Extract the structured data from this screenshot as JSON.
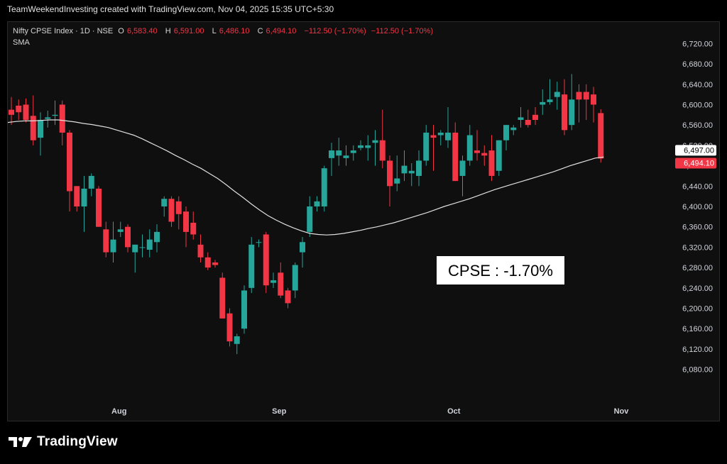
{
  "header": {
    "credit": "TeamWeekendInvesting created with TradingView.com, Nov 04, 2025 15:35 UTC+5:30"
  },
  "legend": {
    "symbol": "Nifty CPSE Index · 1D · NSE",
    "o_label": "O",
    "o_value": "6,583.40",
    "h_label": "H",
    "h_value": "6,591.00",
    "l_label": "L",
    "l_value": "6,486.10",
    "c_label": "C",
    "c_value": "6,494.10",
    "change": "−112.50 (−1.70%)",
    "change2": "−112.50 (−1.70%)",
    "indicator": "SMA"
  },
  "brand": {
    "name": "TradingView",
    "logo_icon": "tradingview-logo-icon"
  },
  "colors": {
    "up": "#26a69a",
    "down": "#f23645",
    "sma": "#e0e0e0",
    "background": "#0f0f0f",
    "axis_text": "#d1d4dc"
  },
  "chart_data": {
    "type": "candlestick",
    "symbol": "Nifty CPSE Index",
    "interval": "1D",
    "exchange": "NSE",
    "ylim": [
      6060,
      6740
    ],
    "yticks": [
      6720,
      6680,
      6640,
      6600,
      6560,
      6520,
      6480,
      6440,
      6400,
      6360,
      6320,
      6280,
      6240,
      6200,
      6160,
      6120,
      6080
    ],
    "ytick_labels": [
      "6,720.00",
      "6,680.00",
      "6,640.00",
      "6,600.00",
      "6,560.00",
      "6,520.00",
      "6,480.00",
      "6,440.00",
      "6,400.00",
      "6,360.00",
      "6,320.00",
      "6,280.00",
      "6,240.00",
      "6,200.00",
      "6,160.00",
      "6,120.00",
      "6,080.00"
    ],
    "xticks": [
      {
        "label": "Aug",
        "index": 15
      },
      {
        "label": "Sep",
        "index": 37
      },
      {
        "label": "Oct",
        "index": 61
      },
      {
        "label": "Nov",
        "index": 84
      }
    ],
    "price_labels": [
      {
        "value": "6,497.00",
        "y": 6497,
        "style": "sma"
      },
      {
        "value": "6,494.10",
        "y": 6494.1,
        "style": "last"
      }
    ],
    "annotation": "CPSE : -1.70%",
    "candles": [
      {
        "o": 6590,
        "h": 6615,
        "l": 6560,
        "c": 6580
      },
      {
        "o": 6598,
        "h": 6610,
        "l": 6570,
        "c": 6585
      },
      {
        "o": 6600,
        "h": 6612,
        "l": 6565,
        "c": 6570
      },
      {
        "o": 6578,
        "h": 6618,
        "l": 6520,
        "c": 6530
      },
      {
        "o": 6535,
        "h": 6585,
        "l": 6500,
        "c": 6570
      },
      {
        "o": 6572,
        "h": 6588,
        "l": 6555,
        "c": 6575
      },
      {
        "o": 6578,
        "h": 6608,
        "l": 6560,
        "c": 6580
      },
      {
        "o": 6600,
        "h": 6608,
        "l": 6520,
        "c": 6545
      },
      {
        "o": 6545,
        "h": 6550,
        "l": 6390,
        "c": 6430
      },
      {
        "o": 6440,
        "h": 6440,
        "l": 6390,
        "c": 6400
      },
      {
        "o": 6400,
        "h": 6460,
        "l": 6350,
        "c": 6435
      },
      {
        "o": 6435,
        "h": 6465,
        "l": 6420,
        "c": 6460
      },
      {
        "o": 6435,
        "h": 6440,
        "l": 6360,
        "c": 6360
      },
      {
        "o": 6355,
        "h": 6370,
        "l": 6300,
        "c": 6310
      },
      {
        "o": 6310,
        "h": 6370,
        "l": 6290,
        "c": 6335
      },
      {
        "o": 6350,
        "h": 6370,
        "l": 6340,
        "c": 6355
      },
      {
        "o": 6360,
        "h": 6365,
        "l": 6310,
        "c": 6320
      },
      {
        "o": 6310,
        "h": 6325,
        "l": 6270,
        "c": 6325
      },
      {
        "o": 6320,
        "h": 6345,
        "l": 6300,
        "c": 6320
      },
      {
        "o": 6315,
        "h": 6355,
        "l": 6300,
        "c": 6335
      },
      {
        "o": 6330,
        "h": 6365,
        "l": 6310,
        "c": 6350
      },
      {
        "o": 6400,
        "h": 6420,
        "l": 6380,
        "c": 6415
      },
      {
        "o": 6415,
        "h": 6420,
        "l": 6360,
        "c": 6370
      },
      {
        "o": 6410,
        "h": 6420,
        "l": 6355,
        "c": 6385
      },
      {
        "o": 6390,
        "h": 6400,
        "l": 6320,
        "c": 6350
      },
      {
        "o": 6368,
        "h": 6390,
        "l": 6335,
        "c": 6345
      },
      {
        "o": 6325,
        "h": 6345,
        "l": 6290,
        "c": 6300
      },
      {
        "o": 6300,
        "h": 6310,
        "l": 6275,
        "c": 6280
      },
      {
        "o": 6290,
        "h": 6295,
        "l": 6280,
        "c": 6285
      },
      {
        "o": 6260,
        "h": 6270,
        "l": 6180,
        "c": 6180
      },
      {
        "o": 6190,
        "h": 6200,
        "l": 6125,
        "c": 6135
      },
      {
        "o": 6130,
        "h": 6150,
        "l": 6110,
        "c": 6145
      },
      {
        "o": 6160,
        "h": 6245,
        "l": 6150,
        "c": 6235
      },
      {
        "o": 6240,
        "h": 6340,
        "l": 6230,
        "c": 6325
      },
      {
        "o": 6330,
        "h": 6335,
        "l": 6320,
        "c": 6330
      },
      {
        "o": 6345,
        "h": 6350,
        "l": 6230,
        "c": 6245
      },
      {
        "o": 6250,
        "h": 6270,
        "l": 6240,
        "c": 6255
      },
      {
        "o": 6270,
        "h": 6290,
        "l": 6220,
        "c": 6225
      },
      {
        "o": 6235,
        "h": 6240,
        "l": 6200,
        "c": 6210
      },
      {
        "o": 6235,
        "h": 6290,
        "l": 6220,
        "c": 6285
      },
      {
        "o": 6310,
        "h": 6340,
        "l": 6280,
        "c": 6330
      },
      {
        "o": 6350,
        "h": 6420,
        "l": 6340,
        "c": 6400
      },
      {
        "o": 6400,
        "h": 6420,
        "l": 6390,
        "c": 6410
      },
      {
        "o": 6400,
        "h": 6480,
        "l": 6390,
        "c": 6475
      },
      {
        "o": 6495,
        "h": 6525,
        "l": 6460,
        "c": 6510
      },
      {
        "o": 6500,
        "h": 6535,
        "l": 6480,
        "c": 6510
      },
      {
        "o": 6495,
        "h": 6520,
        "l": 6480,
        "c": 6500
      },
      {
        "o": 6505,
        "h": 6520,
        "l": 6490,
        "c": 6510
      },
      {
        "o": 6515,
        "h": 6530,
        "l": 6510,
        "c": 6520
      },
      {
        "o": 6515,
        "h": 6540,
        "l": 6490,
        "c": 6520
      },
      {
        "o": 6525,
        "h": 6550,
        "l": 6480,
        "c": 6530
      },
      {
        "o": 6530,
        "h": 6590,
        "l": 6475,
        "c": 6490
      },
      {
        "o": 6490,
        "h": 6500,
        "l": 6400,
        "c": 6440
      },
      {
        "o": 6445,
        "h": 6500,
        "l": 6430,
        "c": 6455
      },
      {
        "o": 6465,
        "h": 6510,
        "l": 6450,
        "c": 6480
      },
      {
        "o": 6465,
        "h": 6485,
        "l": 6440,
        "c": 6470
      },
      {
        "o": 6460,
        "h": 6510,
        "l": 6440,
        "c": 6490
      },
      {
        "o": 6490,
        "h": 6560,
        "l": 6480,
        "c": 6545
      },
      {
        "o": 6540,
        "h": 6560,
        "l": 6470,
        "c": 6535
      },
      {
        "o": 6540,
        "h": 6550,
        "l": 6520,
        "c": 6545
      },
      {
        "o": 6530,
        "h": 6595,
        "l": 6515,
        "c": 6545
      },
      {
        "o": 6545,
        "h": 6565,
        "l": 6450,
        "c": 6450
      },
      {
        "o": 6460,
        "h": 6500,
        "l": 6420,
        "c": 6490
      },
      {
        "o": 6490,
        "h": 6560,
        "l": 6480,
        "c": 6540
      },
      {
        "o": 6510,
        "h": 6550,
        "l": 6490,
        "c": 6505
      },
      {
        "o": 6505,
        "h": 6520,
        "l": 6480,
        "c": 6500
      },
      {
        "o": 6510,
        "h": 6540,
        "l": 6450,
        "c": 6460
      },
      {
        "o": 6470,
        "h": 6530,
        "l": 6460,
        "c": 6530
      },
      {
        "o": 6530,
        "h": 6560,
        "l": 6510,
        "c": 6560
      },
      {
        "o": 6550,
        "h": 6560,
        "l": 6540,
        "c": 6555
      },
      {
        "o": 6570,
        "h": 6595,
        "l": 6555,
        "c": 6575
      },
      {
        "o": 6570,
        "h": 6590,
        "l": 6555,
        "c": 6560
      },
      {
        "o": 6580,
        "h": 6595,
        "l": 6560,
        "c": 6570
      },
      {
        "o": 6600,
        "h": 6630,
        "l": 6580,
        "c": 6605
      },
      {
        "o": 6605,
        "h": 6650,
        "l": 6600,
        "c": 6610
      },
      {
        "o": 6615,
        "h": 6645,
        "l": 6590,
        "c": 6625
      },
      {
        "o": 6620,
        "h": 6650,
        "l": 6540,
        "c": 6550
      },
      {
        "o": 6560,
        "h": 6660,
        "l": 6550,
        "c": 6610
      },
      {
        "o": 6625,
        "h": 6640,
        "l": 6565,
        "c": 6610
      },
      {
        "o": 6625,
        "h": 6640,
        "l": 6570,
        "c": 6610
      },
      {
        "o": 6620,
        "h": 6635,
        "l": 6565,
        "c": 6600
      },
      {
        "o": 6583.4,
        "h": 6591,
        "l": 6486.1,
        "c": 6494.1
      }
    ],
    "sma": [
      6565,
      6567,
      6568,
      6568,
      6569,
      6570,
      6570,
      6568,
      6566,
      6563,
      6561,
      6558,
      6555,
      6550,
      6545,
      6540,
      6533,
      6525,
      6517,
      6509,
      6500,
      6492,
      6483,
      6475,
      6465,
      6455,
      6443,
      6430,
      6418,
      6405,
      6393,
      6382,
      6373,
      6365,
      6358,
      6352,
      6347,
      6345,
      6344,
      6345,
      6347,
      6350,
      6353,
      6357,
      6360,
      6364,
      6368,
      6373,
      6378,
      6383,
      6388,
      6394,
      6400,
      6405,
      6410,
      6415,
      6421,
      6427,
      6433,
      6438,
      6443,
      6448,
      6453,
      6458,
      6463,
      6468,
      6474,
      6480,
      6485,
      6490,
      6495,
      6497
    ]
  }
}
